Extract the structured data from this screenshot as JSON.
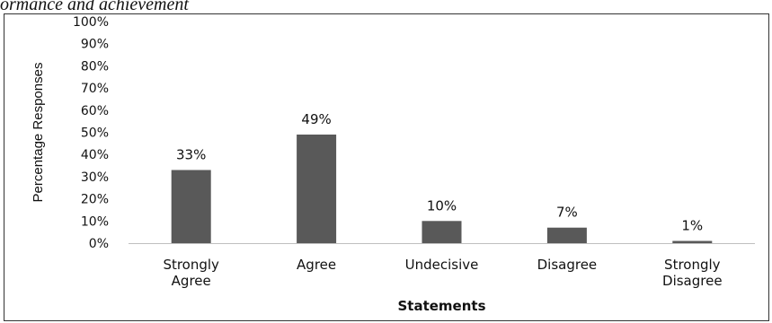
{
  "caption": "ormance and achievement",
  "chart_data": {
    "type": "bar",
    "categories": [
      [
        "Strongly",
        "Agree"
      ],
      [
        "Agree"
      ],
      [
        "Undecisive"
      ],
      [
        "Disagree"
      ],
      [
        "Strongly",
        "Disagree"
      ]
    ],
    "values": [
      33,
      49,
      10,
      7,
      1
    ],
    "data_labels": [
      "33%",
      "49%",
      "10%",
      "7%",
      "1%"
    ],
    "yticks": [
      "0%",
      "10%",
      "20%",
      "30%",
      "40%",
      "50%",
      "60%",
      "70%",
      "80%",
      "90%",
      "100%"
    ],
    "ylim": [
      0,
      100
    ],
    "xlabel": "Statements",
    "ylabel": "Percentage Responses",
    "bar_color": "#595959",
    "grid": false,
    "legend": "none"
  }
}
